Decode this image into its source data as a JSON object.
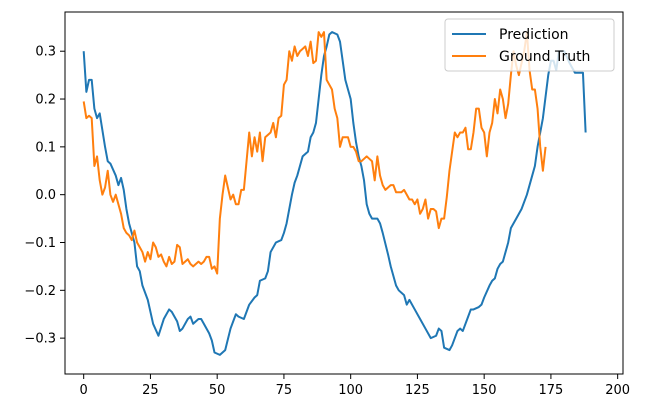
{
  "chart_data": {
    "type": "line",
    "title": "",
    "xlabel": "",
    "ylabel": "",
    "xlim": [
      -7,
      202
    ],
    "ylim": [
      -0.375,
      0.382
    ],
    "xticks": [
      0,
      25,
      50,
      75,
      100,
      125,
      150,
      175,
      200
    ],
    "xtick_labels": [
      "0",
      "25",
      "50",
      "75",
      "100",
      "125",
      "150",
      "175",
      "200"
    ],
    "yticks": [
      -0.3,
      -0.2,
      -0.1,
      0.0,
      0.1,
      0.2,
      0.3
    ],
    "ytick_labels": [
      "−0.3",
      "−0.2",
      "−0.1",
      "0.0",
      "0.1",
      "0.2",
      "0.3"
    ],
    "grid": false,
    "legend": "top-right",
    "series": [
      {
        "name": "Prediction",
        "color": "#1f77b4",
        "points": [
          [
            0,
            0.3
          ],
          [
            1,
            0.215
          ],
          [
            2,
            0.24
          ],
          [
            3,
            0.24
          ],
          [
            4,
            0.18
          ],
          [
            5,
            0.16
          ],
          [
            6,
            0.17
          ],
          [
            8,
            0.1
          ],
          [
            9,
            0.07
          ],
          [
            10,
            0.065
          ],
          [
            12,
            0.04
          ],
          [
            13,
            0.02
          ],
          [
            14,
            0.035
          ],
          [
            15,
            0.01
          ],
          [
            16,
            -0.03
          ],
          [
            17,
            -0.06
          ],
          [
            18,
            -0.08
          ],
          [
            19,
            -0.1
          ],
          [
            20,
            -0.15
          ],
          [
            21,
            -0.16
          ],
          [
            22,
            -0.19
          ],
          [
            24,
            -0.22
          ],
          [
            26,
            -0.27
          ],
          [
            28,
            -0.295
          ],
          [
            30,
            -0.26
          ],
          [
            32,
            -0.24
          ],
          [
            33,
            -0.245
          ],
          [
            35,
            -0.265
          ],
          [
            36,
            -0.285
          ],
          [
            37,
            -0.28
          ],
          [
            39,
            -0.26
          ],
          [
            40,
            -0.255
          ],
          [
            41,
            -0.27
          ],
          [
            43,
            -0.26
          ],
          [
            44,
            -0.26
          ],
          [
            45,
            -0.27
          ],
          [
            47,
            -0.29
          ],
          [
            48,
            -0.305
          ],
          [
            49,
            -0.33
          ],
          [
            51,
            -0.335
          ],
          [
            53,
            -0.325
          ],
          [
            55,
            -0.28
          ],
          [
            56,
            -0.265
          ],
          [
            57,
            -0.25
          ],
          [
            58,
            -0.255
          ],
          [
            60,
            -0.26
          ],
          [
            62,
            -0.23
          ],
          [
            64,
            -0.215
          ],
          [
            65,
            -0.21
          ],
          [
            66,
            -0.18
          ],
          [
            68,
            -0.175
          ],
          [
            69,
            -0.16
          ],
          [
            70,
            -0.12
          ],
          [
            72,
            -0.1
          ],
          [
            74,
            -0.095
          ],
          [
            75,
            -0.08
          ],
          [
            76,
            -0.06
          ],
          [
            78,
            0.0
          ],
          [
            79,
            0.025
          ],
          [
            80,
            0.04
          ],
          [
            81,
            0.06
          ],
          [
            82,
            0.08
          ],
          [
            83,
            0.085
          ],
          [
            84,
            0.09
          ],
          [
            85,
            0.12
          ],
          [
            86,
            0.13
          ],
          [
            87,
            0.15
          ],
          [
            88,
            0.2
          ],
          [
            89,
            0.25
          ],
          [
            90,
            0.29
          ],
          [
            91,
            0.31
          ],
          [
            92,
            0.335
          ],
          [
            93,
            0.34
          ],
          [
            95,
            0.335
          ],
          [
            96,
            0.32
          ],
          [
            97,
            0.28
          ],
          [
            98,
            0.24
          ],
          [
            99,
            0.22
          ],
          [
            100,
            0.2
          ],
          [
            101,
            0.15
          ],
          [
            102,
            0.11
          ],
          [
            103,
            0.08
          ],
          [
            104,
            0.06
          ],
          [
            105,
            0.03
          ],
          [
            106,
            -0.02
          ],
          [
            107,
            -0.04
          ],
          [
            108,
            -0.05
          ],
          [
            110,
            -0.05
          ],
          [
            111,
            -0.06
          ],
          [
            112,
            -0.08
          ],
          [
            114,
            -0.125
          ],
          [
            115,
            -0.15
          ],
          [
            117,
            -0.19
          ],
          [
            118,
            -0.2
          ],
          [
            120,
            -0.21
          ],
          [
            121,
            -0.23
          ],
          [
            122,
            -0.22
          ],
          [
            124,
            -0.24
          ],
          [
            126,
            -0.26
          ],
          [
            128,
            -0.28
          ],
          [
            130,
            -0.3
          ],
          [
            132,
            -0.295
          ],
          [
            133,
            -0.28
          ],
          [
            134,
            -0.285
          ],
          [
            135,
            -0.32
          ],
          [
            137,
            -0.325
          ],
          [
            138,
            -0.315
          ],
          [
            140,
            -0.285
          ],
          [
            141,
            -0.28
          ],
          [
            142,
            -0.285
          ],
          [
            144,
            -0.255
          ],
          [
            145,
            -0.24
          ],
          [
            146,
            -0.24
          ],
          [
            148,
            -0.235
          ],
          [
            149,
            -0.23
          ],
          [
            150,
            -0.215
          ],
          [
            152,
            -0.19
          ],
          [
            153,
            -0.18
          ],
          [
            154,
            -0.175
          ],
          [
            155,
            -0.155
          ],
          [
            156,
            -0.145
          ],
          [
            157,
            -0.14
          ],
          [
            158,
            -0.12
          ],
          [
            159,
            -0.1
          ],
          [
            160,
            -0.07
          ],
          [
            162,
            -0.05
          ],
          [
            164,
            -0.03
          ],
          [
            166,
            0.0
          ],
          [
            168,
            0.04
          ],
          [
            169,
            0.06
          ],
          [
            170,
            0.1
          ],
          [
            172,
            0.16
          ],
          [
            174,
            0.25
          ],
          [
            175,
            0.28
          ],
          [
            176,
            0.28
          ],
          [
            177,
            0.26
          ],
          [
            178,
            0.3
          ],
          [
            180,
            0.3
          ],
          [
            182,
            0.275
          ],
          [
            184,
            0.255
          ],
          [
            186,
            0.255
          ],
          [
            187,
            0.255
          ],
          [
            188,
            0.13
          ]
        ]
      },
      {
        "name": "Ground Truth",
        "color": "#ff7f0e",
        "points": [
          [
            0,
            0.195
          ],
          [
            1,
            0.16
          ],
          [
            2,
            0.165
          ],
          [
            3,
            0.16
          ],
          [
            4,
            0.06
          ],
          [
            5,
            0.08
          ],
          [
            6,
            0.03
          ],
          [
            7,
            0.0
          ],
          [
            8,
            0.015
          ],
          [
            9,
            0.05
          ],
          [
            10,
            0.0
          ],
          [
            11,
            -0.015
          ],
          [
            12,
            0.0
          ],
          [
            13,
            -0.02
          ],
          [
            14,
            -0.04
          ],
          [
            15,
            -0.07
          ],
          [
            16,
            -0.08
          ],
          [
            17,
            -0.085
          ],
          [
            18,
            -0.095
          ],
          [
            19,
            -0.075
          ],
          [
            20,
            -0.1
          ],
          [
            21,
            -0.11
          ],
          [
            22,
            -0.12
          ],
          [
            23,
            -0.14
          ],
          [
            24,
            -0.12
          ],
          [
            25,
            -0.135
          ],
          [
            26,
            -0.1
          ],
          [
            27,
            -0.11
          ],
          [
            28,
            -0.13
          ],
          [
            29,
            -0.125
          ],
          [
            30,
            -0.14
          ],
          [
            31,
            -0.15
          ],
          [
            32,
            -0.13
          ],
          [
            33,
            -0.145
          ],
          [
            34,
            -0.14
          ],
          [
            35,
            -0.105
          ],
          [
            36,
            -0.11
          ],
          [
            37,
            -0.145
          ],
          [
            38,
            -0.14
          ],
          [
            39,
            -0.135
          ],
          [
            40,
            -0.145
          ],
          [
            41,
            -0.15
          ],
          [
            42,
            -0.145
          ],
          [
            43,
            -0.14
          ],
          [
            44,
            -0.145
          ],
          [
            45,
            -0.14
          ],
          [
            46,
            -0.13
          ],
          [
            47,
            -0.13
          ],
          [
            48,
            -0.155
          ],
          [
            49,
            -0.15
          ],
          [
            50,
            -0.165
          ],
          [
            51,
            -0.05
          ],
          [
            52,
            0.0
          ],
          [
            53,
            0.04
          ],
          [
            54,
            0.015
          ],
          [
            55,
            -0.01
          ],
          [
            56,
            0.0
          ],
          [
            57,
            -0.02
          ],
          [
            58,
            -0.02
          ],
          [
            59,
            0.01
          ],
          [
            60,
            0.01
          ],
          [
            61,
            0.07
          ],
          [
            62,
            0.13
          ],
          [
            63,
            0.08
          ],
          [
            64,
            0.12
          ],
          [
            65,
            0.09
          ],
          [
            66,
            0.13
          ],
          [
            67,
            0.07
          ],
          [
            68,
            0.12
          ],
          [
            69,
            0.125
          ],
          [
            70,
            0.13
          ],
          [
            71,
            0.15
          ],
          [
            72,
            0.12
          ],
          [
            73,
            0.16
          ],
          [
            74,
            0.165
          ],
          [
            75,
            0.23
          ],
          [
            76,
            0.24
          ],
          [
            77,
            0.3
          ],
          [
            78,
            0.28
          ],
          [
            79,
            0.31
          ],
          [
            80,
            0.29
          ],
          [
            81,
            0.3
          ],
          [
            82,
            0.305
          ],
          [
            83,
            0.31
          ],
          [
            84,
            0.29
          ],
          [
            85,
            0.32
          ],
          [
            86,
            0.275
          ],
          [
            87,
            0.28
          ],
          [
            88,
            0.34
          ],
          [
            89,
            0.33
          ],
          [
            90,
            0.34
          ],
          [
            91,
            0.24
          ],
          [
            92,
            0.23
          ],
          [
            93,
            0.22
          ],
          [
            94,
            0.18
          ],
          [
            95,
            0.16
          ],
          [
            96,
            0.1
          ],
          [
            97,
            0.12
          ],
          [
            98,
            0.12
          ],
          [
            99,
            0.12
          ],
          [
            100,
            0.1
          ],
          [
            101,
            0.1
          ],
          [
            102,
            0.09
          ],
          [
            103,
            0.07
          ],
          [
            104,
            0.07
          ],
          [
            105,
            0.075
          ],
          [
            106,
            0.08
          ],
          [
            107,
            0.075
          ],
          [
            108,
            0.07
          ],
          [
            109,
            0.03
          ],
          [
            110,
            0.08
          ],
          [
            111,
            0.04
          ],
          [
            112,
            0.02
          ],
          [
            113,
            0.01
          ],
          [
            114,
            0.015
          ],
          [
            115,
            0.02
          ],
          [
            116,
            0.02
          ],
          [
            117,
            0.005
          ],
          [
            118,
            0.005
          ],
          [
            119,
            0.005
          ],
          [
            120,
            0.01
          ],
          [
            121,
            0.0
          ],
          [
            122,
            -0.01
          ],
          [
            123,
            -0.01
          ],
          [
            124,
            -0.02
          ],
          [
            125,
            -0.01
          ],
          [
            126,
            -0.04
          ],
          [
            127,
            -0.03
          ],
          [
            128,
            -0.01
          ],
          [
            129,
            -0.05
          ],
          [
            130,
            -0.03
          ],
          [
            131,
            -0.03
          ],
          [
            132,
            -0.035
          ],
          [
            133,
            -0.07
          ],
          [
            134,
            -0.05
          ],
          [
            135,
            -0.05
          ],
          [
            136,
            -0.005
          ],
          [
            137,
            0.05
          ],
          [
            138,
            0.09
          ],
          [
            139,
            0.13
          ],
          [
            140,
            0.12
          ],
          [
            141,
            0.13
          ],
          [
            142,
            0.13
          ],
          [
            143,
            0.14
          ],
          [
            144,
            0.095
          ],
          [
            145,
            0.095
          ],
          [
            146,
            0.13
          ],
          [
            147,
            0.18
          ],
          [
            148,
            0.18
          ],
          [
            149,
            0.14
          ],
          [
            150,
            0.13
          ],
          [
            151,
            0.08
          ],
          [
            152,
            0.13
          ],
          [
            153,
            0.15
          ],
          [
            154,
            0.2
          ],
          [
            155,
            0.17
          ],
          [
            156,
            0.22
          ],
          [
            157,
            0.2
          ],
          [
            158,
            0.16
          ],
          [
            159,
            0.19
          ],
          [
            160,
            0.25
          ],
          [
            161,
            0.3
          ],
          [
            162,
            0.27
          ],
          [
            163,
            0.25
          ],
          [
            164,
            0.275
          ],
          [
            165,
            0.3
          ],
          [
            166,
            0.34
          ],
          [
            167,
            0.26
          ],
          [
            168,
            0.22
          ],
          [
            169,
            0.22
          ],
          [
            170,
            0.18
          ],
          [
            171,
            0.1
          ],
          [
            172,
            0.05
          ],
          [
            173,
            0.1
          ]
        ]
      }
    ]
  }
}
